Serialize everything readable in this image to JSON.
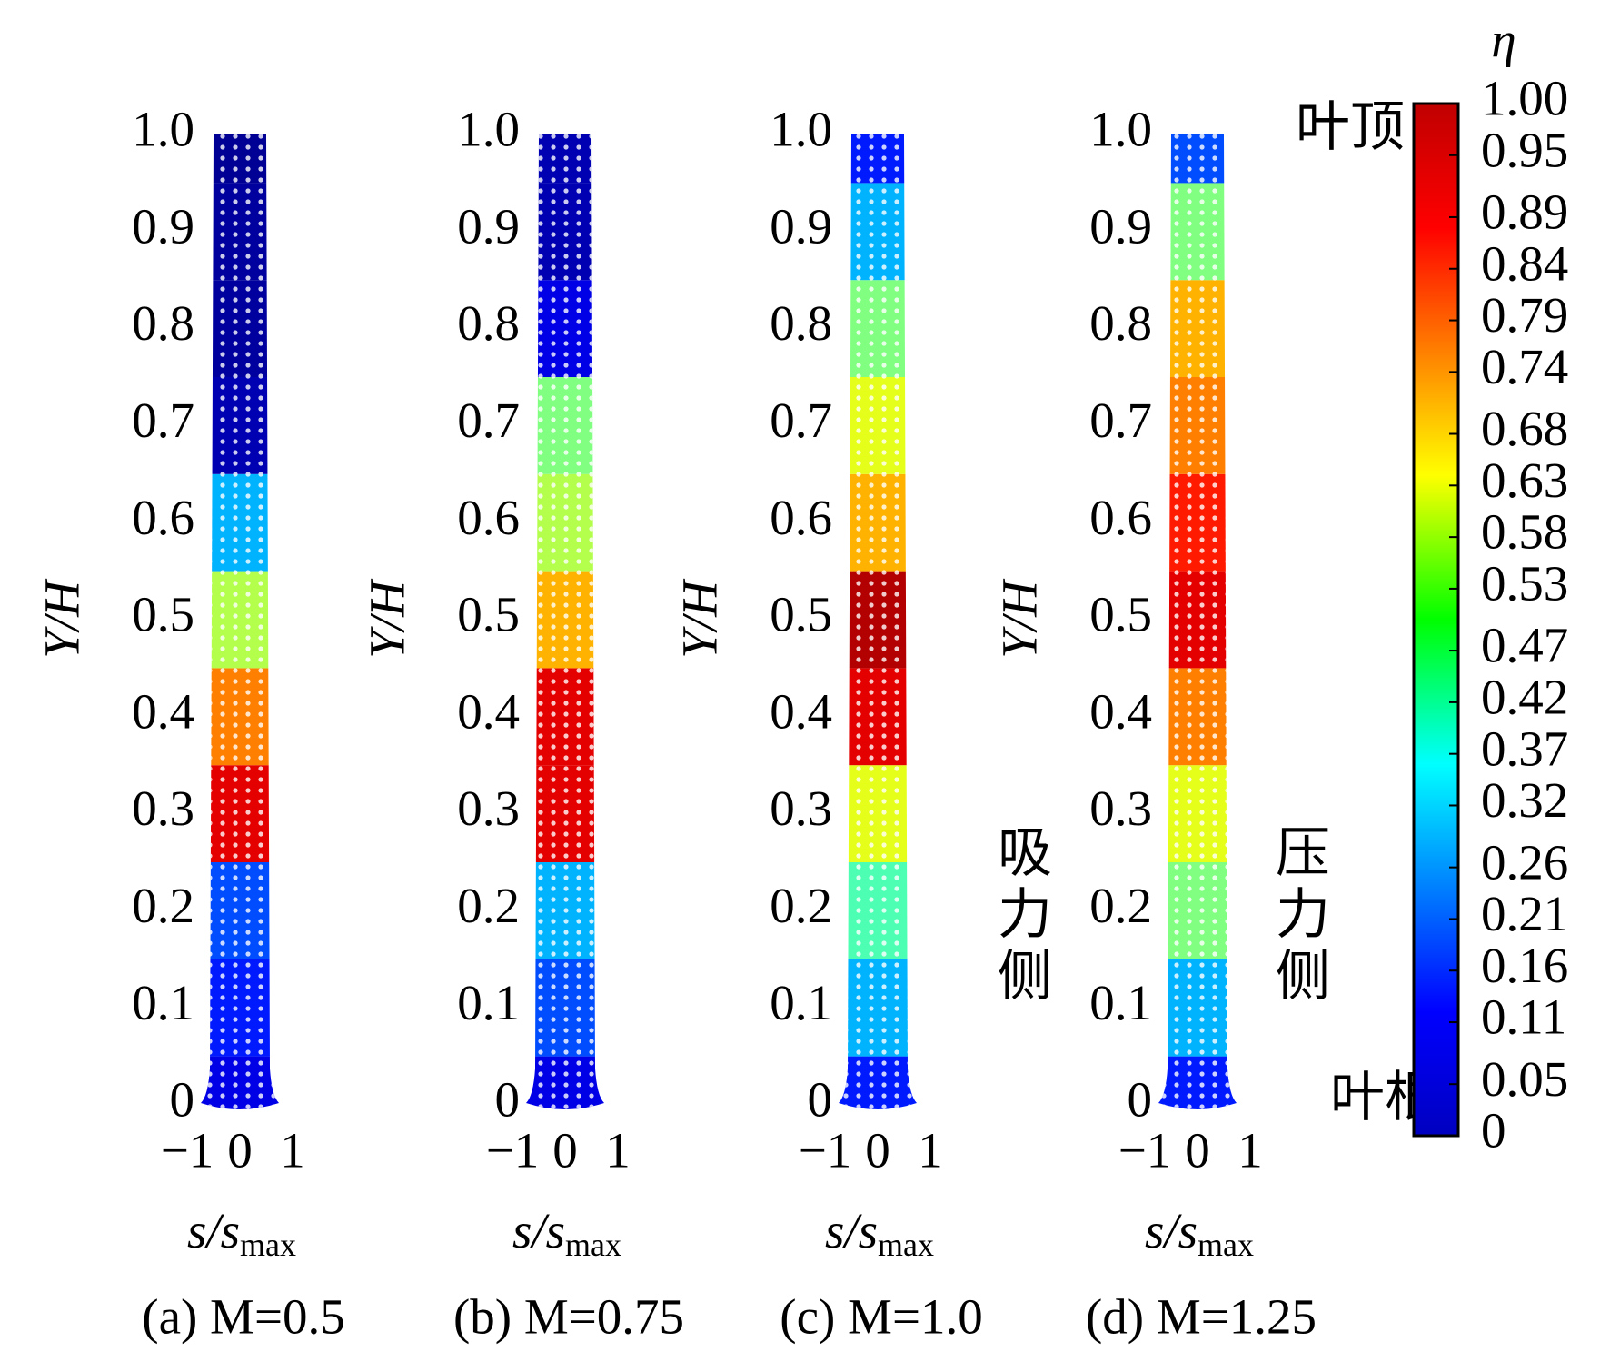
{
  "chart_data": [
    {
      "type": "contour",
      "title": "(a) M=0.5",
      "ylabel": "Y/H",
      "xlabel": "s/s",
      "xlabel_sub": "max",
      "xlim": [
        -1,
        1
      ],
      "xticks": [
        {
          "value": -1,
          "label": "−1"
        },
        0,
        1
      ],
      "ylim": [
        0,
        1
      ],
      "yticks": [
        0,
        0.1,
        0.2,
        0.3,
        0.4,
        0.5,
        0.6,
        0.7,
        0.8,
        0.9,
        {
          "value": 1,
          "label": "1.0"
        }
      ],
      "values": [
        0.1,
        0.15,
        0.2,
        0.9,
        0.75,
        0.55,
        0.3,
        0.05,
        0.03,
        0.03,
        0.02
      ]
    },
    {
      "type": "contour",
      "title": "(b) M=0.75",
      "ylabel": "Y/H",
      "xlabel": "s/s",
      "xlabel_sub": "max",
      "xlim": [
        -1,
        1
      ],
      "xticks": [
        {
          "value": -1,
          "label": "−1"
        },
        0,
        1
      ],
      "ylim": [
        0,
        1
      ],
      "yticks": [
        0,
        0.1,
        0.2,
        0.3,
        0.4,
        0.5,
        0.6,
        0.7,
        0.8,
        0.9,
        {
          "value": 1,
          "label": "1.0"
        }
      ],
      "values": [
        0.1,
        0.2,
        0.3,
        0.9,
        0.9,
        0.7,
        0.55,
        0.5,
        0.1,
        0.05,
        0.05
      ]
    },
    {
      "type": "contour",
      "title": "(c) M=1.0",
      "ylabel": "Y/H",
      "xlabel": "s/s",
      "xlabel_sub": "max",
      "xlim": [
        -1,
        1
      ],
      "xticks": [
        {
          "value": -1,
          "label": "−1"
        },
        0,
        1
      ],
      "ylim": [
        0,
        1
      ],
      "yticks": [
        0,
        0.1,
        0.2,
        0.3,
        0.4,
        0.5,
        0.6,
        0.7,
        0.8,
        0.9,
        {
          "value": 1,
          "label": "1.0"
        }
      ],
      "values": [
        0.15,
        0.3,
        0.45,
        0.6,
        0.9,
        0.95,
        0.7,
        0.6,
        0.5,
        0.3,
        0.15
      ],
      "annotations": [
        "吸力侧"
      ]
    },
    {
      "type": "contour",
      "title": "(d) M=1.25",
      "ylabel": "Y/H",
      "xlabel": "s/s",
      "xlabel_sub": "max",
      "xlim": [
        -1,
        1
      ],
      "xticks": [
        {
          "value": -1,
          "label": "−1"
        },
        0,
        1
      ],
      "ylim": [
        0,
        1
      ],
      "yticks": [
        0,
        0.1,
        0.2,
        0.3,
        0.4,
        0.5,
        0.6,
        0.7,
        0.8,
        0.9,
        {
          "value": 1,
          "label": "1.0"
        }
      ],
      "values": [
        0.15,
        0.3,
        0.5,
        0.6,
        0.75,
        0.9,
        0.85,
        0.75,
        0.7,
        0.5,
        0.2
      ],
      "annotations": [
        "叶顶",
        "压力侧",
        "叶根"
      ]
    },
    {
      "type": "colorbar",
      "title": "η",
      "colormap": "jet",
      "clim": [
        0,
        1
      ],
      "ticks": [
        {
          "value": 1,
          "label": "1.00"
        },
        0.95,
        0.89,
        0.84,
        0.79,
        0.74,
        0.68,
        0.63,
        0.58,
        0.53,
        0.47,
        0.42,
        0.37,
        0.32,
        0.26,
        0.21,
        0.16,
        0.11,
        0.05,
        0
      ]
    }
  ]
}
